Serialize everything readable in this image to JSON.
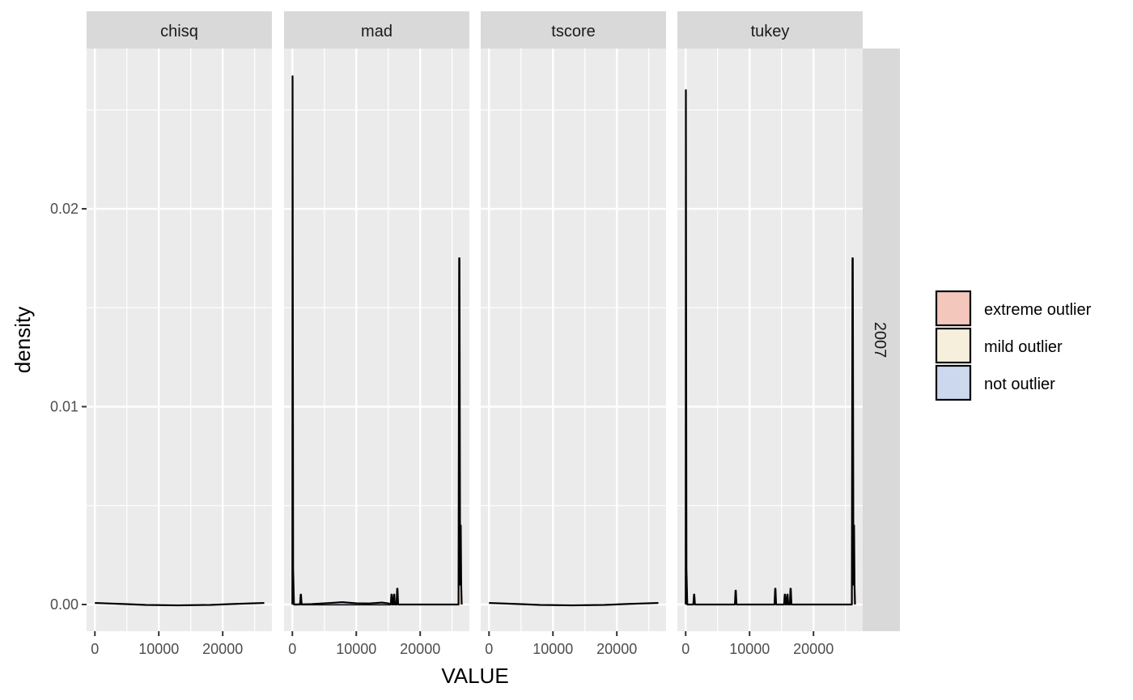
{
  "chart_data": {
    "type": "area",
    "subtype": "faceted density plot",
    "title": "",
    "xlabel": "VALUE",
    "ylabel": "density",
    "row_facet": "2007",
    "xlim": [
      -1300,
      27700
    ],
    "ylim": [
      -0.00135,
      0.0281
    ],
    "x_ticks": [
      0,
      10000,
      20000
    ],
    "x_tick_labels": [
      "0",
      "10000",
      "20000"
    ],
    "y_ticks": [
      0,
      0.01,
      0.02
    ],
    "y_tick_labels": [
      "0.00",
      "0.01",
      "0.02"
    ],
    "grid": true,
    "panel_background": "#ebebeb",
    "strip_background": "#d9d9d9",
    "legend": {
      "position": "right",
      "entries": [
        {
          "label": "extreme outlier",
          "fill": "#f4c7bc"
        },
        {
          "label": "mild outlier",
          "fill": "#f5efdc"
        },
        {
          "label": "not outlier",
          "fill": "#cbd8ee"
        }
      ]
    },
    "facets": [
      {
        "name": "chisq",
        "series": [
          {
            "class": "not outlier",
            "x": [
              0,
              4000,
              8000,
              13000,
              18000,
              22000,
              26500
            ],
            "y": [
              8e-05,
              3e-05,
              -2e-05,
              -4e-05,
              -2e-05,
              3e-05,
              8e-05
            ]
          }
        ]
      },
      {
        "name": "mad",
        "series": [
          {
            "class": "extreme outlier",
            "x": [
              0,
              30,
              120,
              250,
              400,
              1200,
              1300,
              1350,
              1450,
              15400,
              15500,
              15550,
              15650,
              15800,
              15900,
              15950,
              16050,
              16300,
              16400,
              16450,
              16550,
              26000,
              26100,
              26150,
              26250,
              26350,
              26420,
              26500
            ],
            "y": [
              0,
              0.0267,
              0.0018,
              0,
              0,
              0,
              0.0005,
              0.0005,
              0,
              0,
              0.0005,
              0.0005,
              0,
              0,
              0.0005,
              0.0005,
              0,
              0,
              0.0008,
              0.0008,
              0,
              0,
              0.0175,
              0.0175,
              0.001,
              0.004,
              0.001,
              0
            ]
          },
          {
            "class": "not outlier",
            "x": [
              400,
              3000,
              6000,
              7800,
              10000,
              12000,
              14000,
              15000,
              15400
            ],
            "y": [
              0,
              2e-05,
              8e-05,
              0.00012,
              6e-05,
              5e-05,
              0.0001,
              6e-05,
              0
            ]
          }
        ]
      },
      {
        "name": "tscore",
        "series": [
          {
            "class": "not outlier",
            "x": [
              0,
              4000,
              8000,
              13000,
              18000,
              22000,
              26500
            ],
            "y": [
              8e-05,
              3e-05,
              -2e-05,
              -4e-05,
              -2e-05,
              3e-05,
              8e-05
            ]
          }
        ]
      },
      {
        "name": "tukey",
        "series": [
          {
            "class": "extreme outlier",
            "x": [
              0,
              30,
              120,
              250,
              400,
              1200,
              1300,
              1350,
              1450,
              7700,
              7800,
              7850,
              7950,
              13900,
              14000,
              14050,
              14150,
              15400,
              15500,
              15550,
              15650,
              15800,
              15900,
              15950,
              16050,
              16300,
              16400,
              16450,
              16550,
              26000,
              26100,
              26150,
              26250,
              26350,
              26420,
              26500
            ],
            "y": [
              0,
              0.026,
              0.0018,
              0,
              0,
              0,
              0.0005,
              0.0005,
              0,
              0,
              0.0007,
              0.0007,
              0,
              0,
              0.0008,
              0.0008,
              0,
              0,
              0.0005,
              0.0005,
              0,
              0,
              0.0005,
              0.0005,
              0,
              0,
              0.0008,
              0.0008,
              0,
              0,
              0.0175,
              0.0175,
              0.001,
              0.004,
              0.001,
              0
            ]
          }
        ]
      }
    ]
  }
}
